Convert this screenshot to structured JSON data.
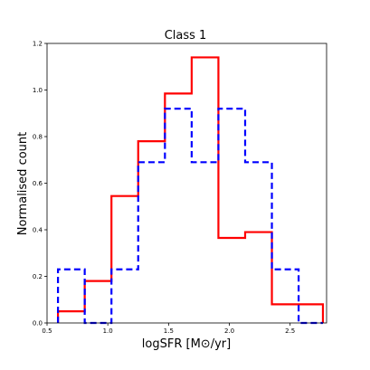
{
  "chart_data": {
    "type": "histogram",
    "title": "Class 1",
    "xlabel": "logSFR [M⊙/yr]",
    "ylabel": "Normalised count",
    "xlim": [
      0.5,
      2.8
    ],
    "ylim": [
      0.0,
      1.2
    ],
    "x_ticks": [
      0.5,
      1.0,
      1.5,
      2.0,
      2.5
    ],
    "y_ticks": [
      0.0,
      0.2,
      0.4,
      0.6,
      0.8,
      1.0,
      1.2
    ],
    "grid": false,
    "series": [
      {
        "color": "#ff0000",
        "dash": "solid",
        "bin_edges": [
          0.59,
          0.81,
          1.03,
          1.25,
          1.47,
          1.69,
          1.91,
          2.13,
          2.35,
          2.57,
          2.77
        ],
        "values": [
          0.05,
          0.18,
          0.545,
          0.78,
          0.985,
          1.14,
          0.365,
          0.39,
          0.08,
          0.08
        ]
      },
      {
        "color": "#0000ff",
        "dash": "dashed",
        "bin_edges": [
          0.59,
          0.81,
          1.03,
          1.25,
          1.47,
          1.69,
          1.91,
          2.13,
          2.35,
          2.57,
          2.77
        ],
        "values": [
          0.23,
          0.0,
          0.23,
          0.69,
          0.92,
          0.69,
          0.92,
          0.69,
          0.23,
          0.0
        ]
      }
    ]
  }
}
